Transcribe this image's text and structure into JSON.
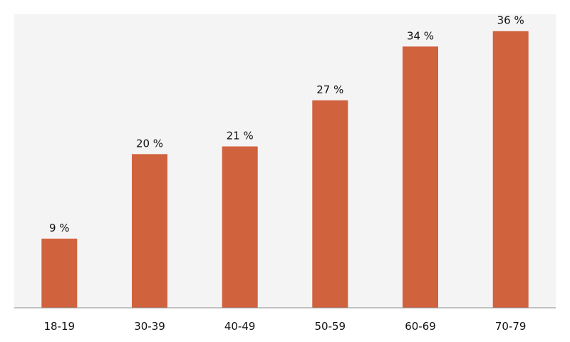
{
  "chart_data": {
    "type": "bar",
    "categories": [
      "18-19",
      "30-39",
      "40-49",
      "50-59",
      "60-69",
      "70-79"
    ],
    "values": [
      9,
      20,
      21,
      27,
      34,
      36
    ],
    "value_labels": [
      "9 %",
      "20 %",
      "21 %",
      "27 %",
      "34 %",
      "36 %"
    ],
    "title": "",
    "xlabel": "",
    "ylabel": "",
    "ylim": [
      0,
      38.2
    ],
    "grid": false,
    "legend": "none",
    "colors": {
      "bar": "#d0623e",
      "plot_background": "#f5f4f4",
      "axis": "#8c8c8c"
    }
  }
}
